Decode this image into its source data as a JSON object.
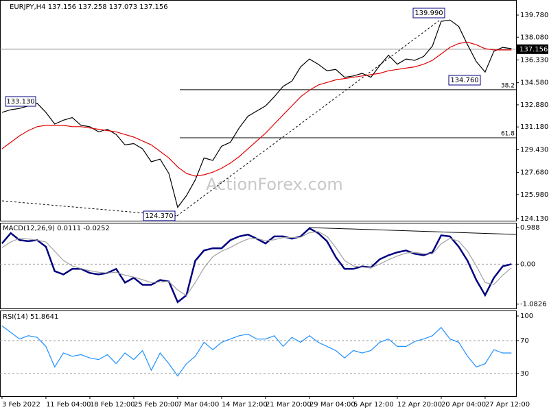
{
  "chart_data": [
    {
      "type": "line",
      "title": "EURJPY,H4  137.156 137.258 137.073 137.156",
      "watermark": "ActionForex.com",
      "xlim": [
        -0.23,
        58.52
      ],
      "ylim": [
        123.97,
        140.94
      ],
      "yticks": [
        {
          "value": 139.78,
          "label": "139.780"
        },
        {
          "value": 138.08,
          "label": "138.080"
        },
        {
          "value": 136.33,
          "label": "136.330"
        },
        {
          "value": 134.58,
          "label": "134.580"
        },
        {
          "value": 132.88,
          "label": "132.880"
        },
        {
          "value": 131.18,
          "label": "131.180"
        },
        {
          "value": 129.43,
          "label": "129.430"
        },
        {
          "value": 127.68,
          "label": "127.680"
        },
        {
          "value": 125.98,
          "label": "125.980"
        },
        {
          "value": 124.13,
          "label": "124.130"
        }
      ],
      "last_price": {
        "value": 137.156,
        "label": "137.156"
      },
      "fib_levels": [
        {
          "value": 134.04,
          "label": "38.2"
        },
        {
          "value": 130.35,
          "label": "61.8"
        }
      ],
      "annotations": [
        "133.130",
        "124.370",
        "139.990",
        "134.760"
      ],
      "series": [
        {
          "color": "#000000",
          "values": [
            132.3,
            132.5,
            132.6,
            132.8,
            133.0,
            132.3,
            131.4,
            131.7,
            131.9,
            131.3,
            131.2,
            130.8,
            131.0,
            130.6,
            129.8,
            129.9,
            129.5,
            128.5,
            128.7,
            127.6,
            125.0,
            125.9,
            127.1,
            128.8,
            128.6,
            129.7,
            130.0,
            131.1,
            132.0,
            132.4,
            132.8,
            133.5,
            134.3,
            134.7,
            135.8,
            136.4,
            136.0,
            135.5,
            135.6,
            135.0,
            135.1,
            135.3,
            135.0,
            135.9,
            136.7,
            136.0,
            136.4,
            136.3,
            136.6,
            137.4,
            139.3,
            139.4,
            138.9,
            137.5,
            136.2,
            135.4,
            137.0,
            137.3,
            137.2
          ]
        },
        {
          "color": "#e00000",
          "values": [
            129.5,
            130.0,
            130.5,
            130.9,
            131.2,
            131.3,
            131.3,
            131.3,
            131.2,
            131.2,
            131.1,
            131.0,
            130.9,
            130.8,
            130.6,
            130.4,
            130.1,
            129.8,
            129.3,
            128.8,
            128.1,
            127.6,
            127.4,
            127.5,
            127.7,
            128.0,
            128.4,
            128.9,
            129.5,
            130.1,
            130.7,
            131.4,
            132.1,
            132.8,
            133.5,
            134.0,
            134.4,
            134.6,
            134.8,
            134.9,
            135.0,
            135.1,
            135.2,
            135.3,
            135.5,
            135.6,
            135.7,
            135.8,
            136.0,
            136.3,
            136.8,
            137.3,
            137.6,
            137.7,
            137.5,
            137.2,
            137.1,
            137.1,
            137.1
          ]
        }
      ]
    },
    {
      "type": "line",
      "title": "MACD(12,26,9) 0.0111 -0.0252",
      "xlim": [
        -0.23,
        58.52
      ],
      "ylim": [
        -1.2,
        1.12
      ],
      "yticks": [
        0.988,
        {
          "value": 0,
          "label": "0.00"
        },
        -1.0826
      ],
      "series": [
        {
          "color": "#000080",
          "values": [
            0.56,
            0.84,
            0.65,
            0.62,
            0.65,
            0.47,
            -0.19,
            -0.28,
            -0.13,
            -0.13,
            -0.24,
            -0.28,
            -0.24,
            -0.13,
            -0.5,
            -0.37,
            -0.56,
            -0.56,
            -0.43,
            -0.47,
            -1.03,
            -0.84,
            0.09,
            0.37,
            0.43,
            0.43,
            0.65,
            0.75,
            0.8,
            0.69,
            0.56,
            0.75,
            0.75,
            0.69,
            0.75,
            0.97,
            0.84,
            0.62,
            0.19,
            -0.13,
            -0.13,
            -0.06,
            -0.09,
            0.13,
            0.24,
            0.32,
            0.37,
            0.28,
            0.24,
            0.32,
            0.78,
            0.75,
            0.47,
            0.09,
            -0.43,
            -0.84,
            -0.37,
            -0.06,
            0.0
          ]
        },
        {
          "color": "#a0a0a0",
          "values": [
            0.45,
            0.6,
            0.7,
            0.68,
            0.65,
            0.6,
            0.35,
            0.1,
            -0.05,
            -0.12,
            -0.18,
            -0.22,
            -0.24,
            -0.22,
            -0.3,
            -0.35,
            -0.42,
            -0.5,
            -0.48,
            -0.47,
            -0.7,
            -0.85,
            -0.5,
            -0.1,
            0.2,
            0.35,
            0.45,
            0.58,
            0.68,
            0.7,
            0.63,
            0.66,
            0.72,
            0.72,
            0.73,
            0.85,
            0.88,
            0.75,
            0.45,
            0.1,
            -0.05,
            -0.08,
            -0.1,
            0.0,
            0.12,
            0.22,
            0.3,
            0.32,
            0.28,
            0.28,
            0.55,
            0.7,
            0.62,
            0.35,
            -0.05,
            -0.5,
            -0.55,
            -0.3,
            -0.1
          ]
        }
      ]
    },
    {
      "type": "line",
      "title": "RSI(14) 51.8641",
      "xlim": [
        -0.23,
        58.52
      ],
      "ylim": [
        2.5,
        106.7
      ],
      "yticks": [
        100,
        70,
        30
      ],
      "levels": [
        70,
        30
      ],
      "xticks": [
        {
          "value": 0,
          "label": "3 Feb 2022"
        },
        {
          "value": 5,
          "label": "11 Feb 04:00"
        },
        {
          "value": 10,
          "label": "18 Feb 12:00"
        },
        {
          "value": 15,
          "label": "25 Feb 20:00"
        },
        {
          "value": 20,
          "label": "7 Mar 04:00"
        },
        {
          "value": 25,
          "label": "14 Mar 12:00"
        },
        {
          "value": 30,
          "label": "21 Mar 20:00"
        },
        {
          "value": 35,
          "label": "29 Mar 04:00"
        },
        {
          "value": 40,
          "label": "5 Apr 12:00"
        },
        {
          "value": 45,
          "label": "12 Apr 20:00"
        },
        {
          "value": 50,
          "label": "20 Apr 04:00"
        },
        {
          "value": 55,
          "label": "27 Apr 12:00"
        }
      ],
      "series": [
        {
          "color": "#1e90ff",
          "values": [
            88,
            80,
            72,
            76,
            74,
            63,
            38,
            55,
            51,
            53,
            49,
            47,
            53,
            42,
            55,
            47,
            58,
            34,
            55,
            42,
            27,
            42,
            51,
            68,
            59,
            68,
            72,
            76,
            78,
            72,
            72,
            76,
            63,
            74,
            68,
            76,
            68,
            63,
            58,
            49,
            58,
            55,
            58,
            68,
            72,
            63,
            63,
            69,
            72,
            76,
            86,
            72,
            68,
            51,
            38,
            42,
            59,
            55,
            55
          ]
        }
      ]
    }
  ]
}
